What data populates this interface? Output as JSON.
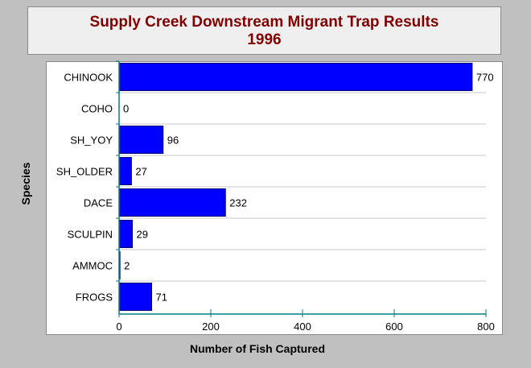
{
  "chart_data": {
    "type": "bar",
    "orientation": "horizontal",
    "title": "Supply Creek Downstream Migrant Trap Results",
    "subtitle": "1996",
    "xlabel": "Number of Fish Captured",
    "ylabel": "Species",
    "categories": [
      "CHINOOK",
      "COHO",
      "SH_YOY",
      "SH_OLDER",
      "DACE",
      "SCULPIN",
      "AMMOC",
      "FROGS"
    ],
    "values": [
      770,
      0,
      96,
      27,
      232,
      29,
      2,
      71
    ],
    "data_labels": [
      "770",
      "0",
      "96",
      "27",
      "232",
      "29",
      "2",
      "71"
    ],
    "xlim": [
      0,
      800
    ],
    "x_ticks": [
      0,
      200,
      400,
      600,
      800
    ],
    "x_tick_labels": [
      "0",
      "200",
      "400",
      "600",
      "800"
    ],
    "grid": "horizontal lines between categories",
    "legend": "none",
    "colors": {
      "bar": "#0000ff",
      "bar_outline": "#00007a",
      "axis": "#008080",
      "title": "#800000",
      "background": "#c0c0c0",
      "panel": "#ffffff"
    }
  }
}
